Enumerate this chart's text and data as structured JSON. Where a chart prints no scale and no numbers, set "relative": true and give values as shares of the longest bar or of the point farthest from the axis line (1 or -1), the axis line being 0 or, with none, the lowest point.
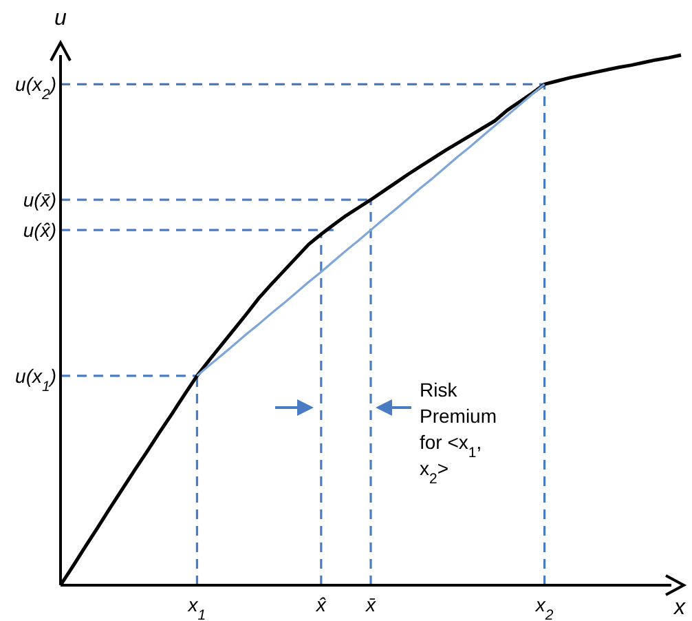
{
  "chart_data": {
    "type": "line",
    "relative": true,
    "xlabel": "x",
    "ylabel": "u",
    "categories": [
      null,
      null,
      null,
      null,
      null,
      null,
      null,
      null,
      null,
      null,
      null,
      "x$_{1}$",
      null,
      null,
      null,
      null,
      null,
      null,
      null,
      null,
      null,
      "x̂",
      null,
      null,
      null,
      "x̄",
      null,
      null,
      null,
      null,
      null,
      null,
      null,
      null,
      null,
      null,
      null,
      null,
      null,
      "x$_{2}$",
      null,
      null,
      null,
      null,
      null,
      null,
      null,
      null,
      null,
      null,
      null
    ],
    "series": [
      {
        "color": "#000000",
        "values": [
          0,
          0.036,
          0.073,
          0.109,
          0.146,
          0.182,
          0.218,
          0.253,
          0.289,
          0.324,
          0.36,
          0.395,
          0.425,
          0.454,
          0.483,
          0.512,
          0.542,
          0.568,
          0.593,
          0.618,
          0.643,
          0.662,
          0.68,
          0.697,
          0.712,
          0.727,
          0.743,
          0.759,
          0.775,
          0.79,
          0.805,
          0.82,
          0.834,
          0.848,
          0.862,
          0.876,
          0.896,
          0.912,
          0.928,
          0.945,
          0.951,
          0.957,
          0.962,
          0.967,
          0.972,
          0.977,
          0.981,
          0.986,
          0.991,
          0.995,
          1
        ]
      },
      {
        "color": "#7ea6d8",
        "values": [
          null,
          null,
          null,
          null,
          null,
          null,
          null,
          null,
          null,
          null,
          null,
          0.395,
          0.415,
          0.434,
          0.454,
          0.474,
          0.493,
          0.513,
          0.532,
          0.552,
          0.572,
          0.591,
          0.611,
          0.631,
          0.65,
          0.67,
          0.69,
          0.709,
          0.729,
          0.749,
          0.768,
          0.788,
          0.808,
          0.827,
          0.847,
          0.867,
          0.886,
          0.906,
          0.926,
          0.945,
          null,
          null,
          null,
          null,
          null,
          null,
          null,
          null,
          null,
          null,
          null
        ]
      }
    ],
    "ref_lines": [
      {
        "axis": "y",
        "value": 0.945,
        "label": "u(x$_{2}$)",
        "color": "#4a7cc4",
        "line_style": "dashed"
      },
      {
        "axis": "y",
        "value": 0.727,
        "label": "u(x̄)",
        "color": "#4a7cc4",
        "line_style": "dashed"
      },
      {
        "axis": "y",
        "value": 0.67,
        "label": "u(x̂)",
        "color": "#4a7cc4",
        "line_style": "dashed"
      },
      {
        "axis": "y",
        "value": 0.395,
        "label": "u(x$_{1}$)",
        "color": "#4a7cc4",
        "line_style": "dashed"
      },
      {
        "axis": "x",
        "value": "x$_{1}$",
        "color": "#4a7cc4",
        "line_style": "dashed"
      },
      {
        "axis": "x",
        "value": "x̂",
        "color": "#4a7cc4",
        "line_style": "dashed"
      },
      {
        "axis": "x",
        "value": "x̄",
        "color": "#4a7cc4",
        "line_style": "dashed"
      },
      {
        "axis": "x",
        "value": "x$_{2}$",
        "color": "#4a7cc4",
        "line_style": "dashed"
      }
    ],
    "annotations": [
      "Risk Premium for <x$_{1}$, x$_{2}$>"
    ]
  }
}
